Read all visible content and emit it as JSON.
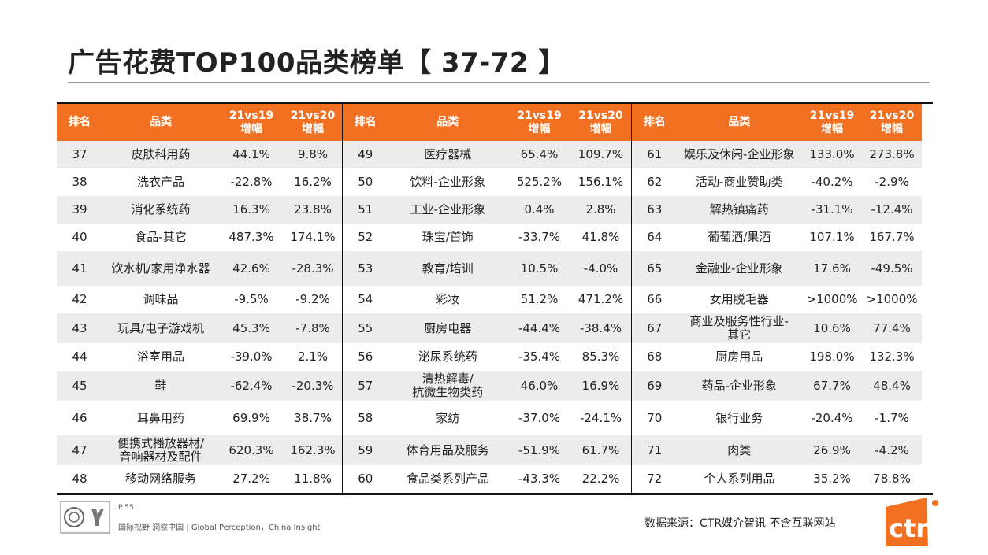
{
  "title": "广告花费TOP100品类榜单【 37-72 】",
  "headers": {
    "rank": "排名",
    "category": "品类",
    "g19_line1": "21vs19",
    "g19_line2": "增幅",
    "g20_line1": "21vs20",
    "g20_line2": "增幅"
  },
  "tables": [
    {
      "rows": [
        {
          "rank": "37",
          "cat": "皮肤科用药",
          "g19": "44.1%",
          "g20": "9.8%"
        },
        {
          "rank": "38",
          "cat": "洗衣产品",
          "g19": "-22.8%",
          "g20": "16.2%"
        },
        {
          "rank": "39",
          "cat": "消化系统药",
          "g19": "16.3%",
          "g20": "23.8%"
        },
        {
          "rank": "40",
          "cat": "食品-其它",
          "g19": "487.3%",
          "g20": "174.1%"
        },
        {
          "rank": "41",
          "cat": "饮水机/家用净水器",
          "g19": "42.6%",
          "g20": "-28.3%"
        },
        {
          "rank": "42",
          "cat": "调味品",
          "g19": "-9.5%",
          "g20": "-9.2%"
        },
        {
          "rank": "43",
          "cat": "玩具/电子游戏机",
          "g19": "45.3%",
          "g20": "-7.8%"
        },
        {
          "rank": "44",
          "cat": "浴室用品",
          "g19": "-39.0%",
          "g20": "2.1%"
        },
        {
          "rank": "45",
          "cat": "鞋",
          "g19": "-62.4%",
          "g20": "-20.3%"
        },
        {
          "rank": "46",
          "cat": "耳鼻用药",
          "g19": "69.9%",
          "g20": "38.7%"
        },
        {
          "rank": "47",
          "cat_l1": "便携式播放器材/",
          "cat_l2": "音响器材及配件",
          "g19": "620.3%",
          "g20": "162.3%"
        },
        {
          "rank": "48",
          "cat": "移动网络服务",
          "g19": "27.2%",
          "g20": "11.8%"
        }
      ]
    },
    {
      "rows": [
        {
          "rank": "49",
          "cat": "医疗器械",
          "g19": "65.4%",
          "g20": "109.7%"
        },
        {
          "rank": "50",
          "cat": "饮料-企业形象",
          "g19": "525.2%",
          "g20": "156.1%"
        },
        {
          "rank": "51",
          "cat": "工业-企业形象",
          "g19": "0.4%",
          "g20": "2.8%"
        },
        {
          "rank": "52",
          "cat": "珠宝/首饰",
          "g19": "-33.7%",
          "g20": "41.8%"
        },
        {
          "rank": "53",
          "cat": "教育/培训",
          "g19": "10.5%",
          "g20": "-4.0%"
        },
        {
          "rank": "54",
          "cat": "彩妆",
          "g19": "51.2%",
          "g20": "471.2%"
        },
        {
          "rank": "55",
          "cat": "厨房电器",
          "g19": "-44.4%",
          "g20": "-38.4%"
        },
        {
          "rank": "56",
          "cat": "泌尿系统药",
          "g19": "-35.4%",
          "g20": "85.3%"
        },
        {
          "rank": "57",
          "cat_l1": "清热解毒/",
          "cat_l2": "抗微生物类药",
          "g19": "46.0%",
          "g20": "16.9%"
        },
        {
          "rank": "58",
          "cat": "家纺",
          "g19": "-37.0%",
          "g20": "-24.1%"
        },
        {
          "rank": "59",
          "cat": "体育用品及服务",
          "g19": "-51.9%",
          "g20": "61.7%"
        },
        {
          "rank": "60",
          "cat": "食品类系列产品",
          "g19": "-43.3%",
          "g20": "22.2%"
        }
      ]
    },
    {
      "rows": [
        {
          "rank": "61",
          "cat": "娱乐及休闲-企业形象",
          "g19": "133.0%",
          "g20": "273.8%"
        },
        {
          "rank": "62",
          "cat": "活动-商业赞助类",
          "g19": "-40.2%",
          "g20": "-2.9%"
        },
        {
          "rank": "63",
          "cat": "解热镇痛药",
          "g19": "-31.1%",
          "g20": "-12.4%"
        },
        {
          "rank": "64",
          "cat": "葡萄酒/果酒",
          "g19": "107.1%",
          "g20": "167.7%"
        },
        {
          "rank": "65",
          "cat": "金融业-企业形象",
          "g19": "17.6%",
          "g20": "-49.5%"
        },
        {
          "rank": "66",
          "cat": "女用脱毛器",
          "g19": ">1000%",
          "g20": ">1000%"
        },
        {
          "rank": "67",
          "cat_l1": "商业及服务性行业-",
          "cat_l2": "其它",
          "g19": "10.6%",
          "g20": "77.4%"
        },
        {
          "rank": "68",
          "cat": "厨房用品",
          "g19": "198.0%",
          "g20": "132.3%"
        },
        {
          "rank": "69",
          "cat": "药品-企业形象",
          "g19": "67.7%",
          "g20": "48.4%"
        },
        {
          "rank": "70",
          "cat": "银行业务",
          "g19": "-20.4%",
          "g20": "-1.7%"
        },
        {
          "rank": "71",
          "cat": "肉类",
          "g19": "26.9%",
          "g20": "-4.2%"
        },
        {
          "rank": "72",
          "cat": "个人系列用品",
          "g19": "35.2%",
          "g20": "78.8%"
        }
      ]
    }
  ],
  "footer": {
    "page": "P 55",
    "tagline": "国际视野 洞察中国 | Global Perception，China Insight",
    "source": "数据来源：CTR媒介智讯  不含互联网站",
    "logo_text": "ctr"
  },
  "colors": {
    "accent": "#f27022",
    "row_alt": "#ececec"
  }
}
